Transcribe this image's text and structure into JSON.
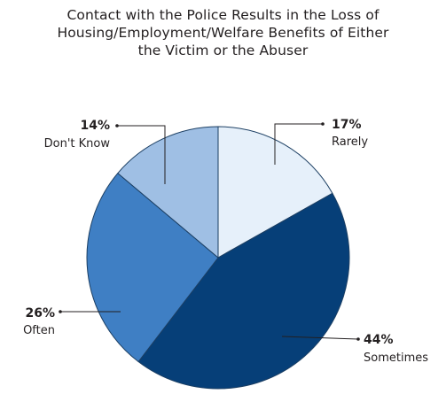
{
  "chart_data": {
    "type": "pie",
    "title": "Contact with the Police Results in the Loss of Housing/Employment/Welfare Benefits of Either the Victim or the Abuser",
    "title_lines": [
      "Contact with the Police Results in the Loss of",
      "Housing/Employment/Welfare Benefits of Either",
      "the Victim or the Abuser"
    ],
    "start_angle_deg": 0,
    "direction": "clockwise",
    "slices": [
      {
        "label": "Rarely",
        "value": 17,
        "value_label": "17%",
        "color": "#e6f0fa"
      },
      {
        "label": "Sometimes",
        "value": 44,
        "value_label": "44%",
        "color": "#063f78"
      },
      {
        "label": "Often",
        "value": 26,
        "value_label": "26%",
        "color": "#3f7fc4"
      },
      {
        "label": "Don't Know",
        "value": 14,
        "value_label": "14%",
        "color": "#9fbfe4"
      }
    ],
    "slice_border_color": "#1c3f63",
    "legend": "none"
  }
}
